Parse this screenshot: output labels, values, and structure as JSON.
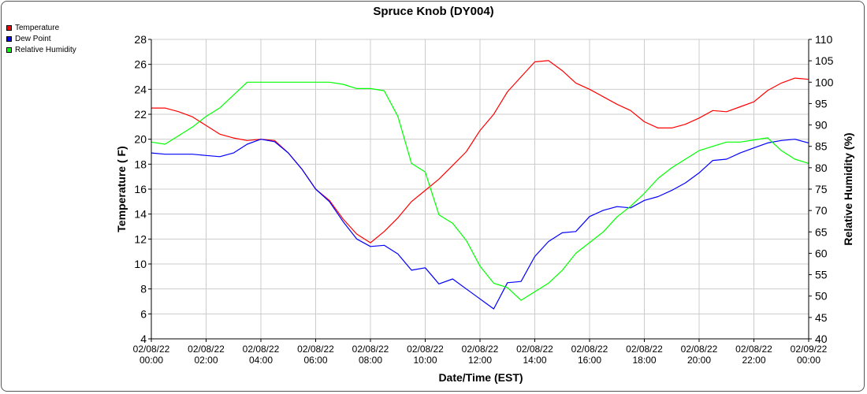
{
  "chart_data": {
    "type": "line",
    "title": "Spruce Knob (DY004)",
    "xlabel": "Date/Time (EST)",
    "ylabel": "Temperature ( F)",
    "y2label": "Relative Humidity (%)",
    "ylim": [
      4,
      28
    ],
    "y2lim": [
      40,
      110
    ],
    "grid": true,
    "legend_placement": "top-left",
    "x_ticks": [
      [
        "02/08/22",
        "00:00"
      ],
      [
        "02/08/22",
        "02:00"
      ],
      [
        "02/08/22",
        "04:00"
      ],
      [
        "02/08/22",
        "06:00"
      ],
      [
        "02/08/22",
        "08:00"
      ],
      [
        "02/08/22",
        "10:00"
      ],
      [
        "02/08/22",
        "12:00"
      ],
      [
        "02/08/22",
        "14:00"
      ],
      [
        "02/08/22",
        "16:00"
      ],
      [
        "02/08/22",
        "18:00"
      ],
      [
        "02/08/22",
        "20:00"
      ],
      [
        "02/08/22",
        "22:00"
      ],
      [
        "02/09/22",
        "00:00"
      ]
    ],
    "y_ticks": [
      4,
      6,
      8,
      10,
      12,
      14,
      16,
      18,
      20,
      22,
      24,
      26,
      28
    ],
    "y2_ticks": [
      40,
      45,
      50,
      55,
      60,
      65,
      70,
      75,
      80,
      85,
      90,
      95,
      100,
      105,
      110
    ],
    "x_unit": "hours since 02/08/22 00:00",
    "series": [
      {
        "name": "Temperature",
        "axis": "left",
        "color": "#ff0000",
        "points": [
          [
            0,
            22.5
          ],
          [
            0.5,
            22.5
          ],
          [
            1,
            22.2
          ],
          [
            1.5,
            21.8
          ],
          [
            2,
            21.1
          ],
          [
            2.5,
            20.4
          ],
          [
            3,
            20.1
          ],
          [
            3.5,
            19.9
          ],
          [
            4,
            20.0
          ],
          [
            4.5,
            19.9
          ],
          [
            5,
            18.9
          ],
          [
            5.5,
            17.6
          ],
          [
            6,
            16.0
          ],
          [
            6.5,
            15.1
          ],
          [
            7,
            13.6
          ],
          [
            7.5,
            12.4
          ],
          [
            8,
            11.7
          ],
          [
            8.5,
            12.6
          ],
          [
            9,
            13.7
          ],
          [
            9.5,
            15.0
          ],
          [
            10,
            15.9
          ],
          [
            10.5,
            16.8
          ],
          [
            11,
            17.9
          ],
          [
            11.5,
            19.0
          ],
          [
            12,
            20.7
          ],
          [
            12.5,
            22.0
          ],
          [
            13,
            23.8
          ],
          [
            13.5,
            25.0
          ],
          [
            14,
            26.2
          ],
          [
            14.5,
            26.3
          ],
          [
            15,
            25.5
          ],
          [
            15.5,
            24.5
          ],
          [
            16,
            24.0
          ],
          [
            16.5,
            23.4
          ],
          [
            17,
            22.8
          ],
          [
            17.5,
            22.3
          ],
          [
            18,
            21.4
          ],
          [
            18.5,
            20.9
          ],
          [
            19,
            20.9
          ],
          [
            19.5,
            21.2
          ],
          [
            20,
            21.7
          ],
          [
            20.5,
            22.3
          ],
          [
            21,
            22.2
          ],
          [
            21.5,
            22.6
          ],
          [
            22,
            23.0
          ],
          [
            22.5,
            23.9
          ],
          [
            23,
            24.5
          ],
          [
            23.5,
            24.9
          ],
          [
            24,
            24.8
          ]
        ]
      },
      {
        "name": "Dew Point",
        "axis": "left",
        "color": "#0000ff",
        "points": [
          [
            0,
            18.9
          ],
          [
            0.5,
            18.8
          ],
          [
            1,
            18.8
          ],
          [
            1.5,
            18.8
          ],
          [
            2,
            18.7
          ],
          [
            2.5,
            18.6
          ],
          [
            3,
            18.9
          ],
          [
            3.5,
            19.6
          ],
          [
            4,
            20.0
          ],
          [
            4.5,
            19.8
          ],
          [
            5,
            18.9
          ],
          [
            5.5,
            17.6
          ],
          [
            6,
            16.0
          ],
          [
            6.5,
            15.0
          ],
          [
            7,
            13.4
          ],
          [
            7.5,
            12.0
          ],
          [
            8,
            11.4
          ],
          [
            8.5,
            11.5
          ],
          [
            9,
            10.8
          ],
          [
            9.5,
            9.5
          ],
          [
            10,
            9.7
          ],
          [
            10.5,
            8.4
          ],
          [
            11,
            8.8
          ],
          [
            11.5,
            8.0
          ],
          [
            12,
            7.2
          ],
          [
            12.5,
            6.4
          ],
          [
            13,
            8.5
          ],
          [
            13.5,
            8.6
          ],
          [
            14,
            10.6
          ],
          [
            14.5,
            11.8
          ],
          [
            15,
            12.5
          ],
          [
            15.5,
            12.6
          ],
          [
            16,
            13.8
          ],
          [
            16.5,
            14.3
          ],
          [
            17,
            14.6
          ],
          [
            17.5,
            14.5
          ],
          [
            18,
            15.1
          ],
          [
            18.5,
            15.4
          ],
          [
            19,
            15.9
          ],
          [
            19.5,
            16.5
          ],
          [
            20,
            17.3
          ],
          [
            20.5,
            18.3
          ],
          [
            21,
            18.4
          ],
          [
            21.5,
            18.9
          ],
          [
            22,
            19.3
          ],
          [
            22.5,
            19.7
          ],
          [
            23,
            19.9
          ],
          [
            23.5,
            20.0
          ],
          [
            24,
            19.7
          ]
        ]
      },
      {
        "name": "Relative Humidity",
        "axis": "right",
        "color": "#00ff00",
        "points": [
          [
            0,
            86
          ],
          [
            0.5,
            85.5
          ],
          [
            1,
            87.5
          ],
          [
            1.5,
            89.5
          ],
          [
            2,
            92
          ],
          [
            2.5,
            94
          ],
          [
            3,
            97
          ],
          [
            3.5,
            100
          ],
          [
            4,
            100
          ],
          [
            4.5,
            100
          ],
          [
            5,
            100
          ],
          [
            5.5,
            100
          ],
          [
            6,
            100
          ],
          [
            6.5,
            100
          ],
          [
            7,
            99.5
          ],
          [
            7.5,
            98.5
          ],
          [
            8,
            98.5
          ],
          [
            8.5,
            98
          ],
          [
            9,
            92
          ],
          [
            9.5,
            81
          ],
          [
            10,
            79
          ],
          [
            10.5,
            69
          ],
          [
            11,
            67
          ],
          [
            11.5,
            63
          ],
          [
            12,
            57
          ],
          [
            12.5,
            53
          ],
          [
            13,
            52
          ],
          [
            13.5,
            49
          ],
          [
            14,
            51
          ],
          [
            14.5,
            53
          ],
          [
            15,
            56
          ],
          [
            15.5,
            60
          ],
          [
            16,
            62.5
          ],
          [
            16.5,
            65
          ],
          [
            17,
            68.5
          ],
          [
            17.5,
            71
          ],
          [
            18,
            74
          ],
          [
            18.5,
            77.5
          ],
          [
            19,
            80
          ],
          [
            19.5,
            82
          ],
          [
            20,
            84
          ],
          [
            20.5,
            85
          ],
          [
            21,
            86
          ],
          [
            21.5,
            86
          ],
          [
            22,
            86.5
          ],
          [
            22.5,
            87
          ],
          [
            23,
            84
          ],
          [
            23.5,
            82
          ],
          [
            24,
            81
          ]
        ]
      }
    ]
  }
}
